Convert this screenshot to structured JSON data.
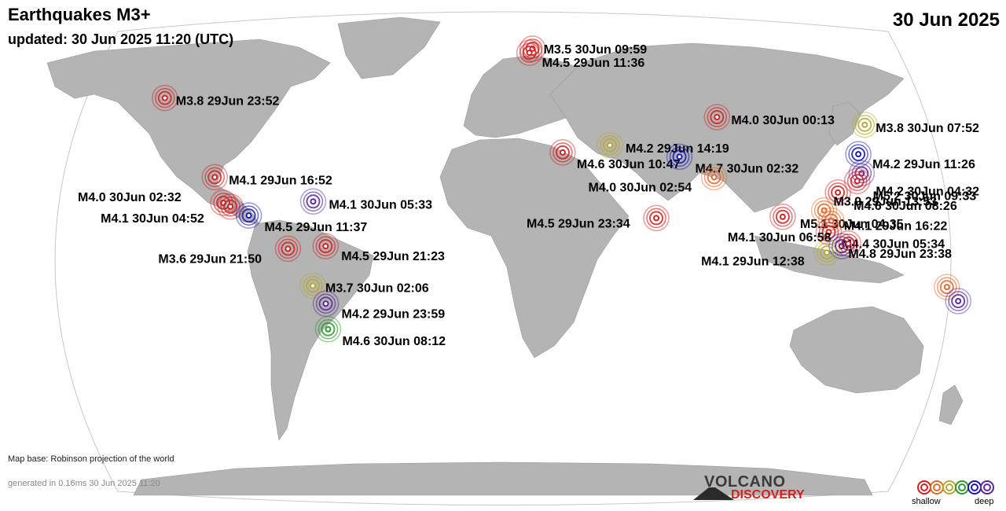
{
  "header": {
    "title": "Earthquakes M3+",
    "updated": "updated: 30 Jun 2025 11:20 (UTC)",
    "date": "30 Jun 2025"
  },
  "footer": {
    "map_base": "Map base: Robinson projection of the world",
    "generated": "generated in 0.16ms 30 Jun 2025 11:20"
  },
  "logo": {
    "line1": "VOLCANO",
    "line2": "DISCOVERY"
  },
  "legend": {
    "shallow": "shallow",
    "deep": "deep",
    "depth_colors": [
      "#d42020",
      "#e06a2a",
      "#b8a830",
      "#2a9a2a",
      "#1a1ab0",
      "#5a2a9a"
    ]
  },
  "colors": {
    "ocean": "#ffffff",
    "land": "#b4b4b4",
    "outline": "#c8c8c8",
    "deep_red": "#d42020",
    "orange": "#e06a2a",
    "olive": "#b8a830",
    "green": "#2a9a2a",
    "blue": "#1a1ab0",
    "purple": "#5a2a9a"
  },
  "quakes": [
    {
      "label": "M3.5 30Jun 09:59",
      "lon": 15.3,
      "lat": 78.8,
      "depth": "red"
    },
    {
      "label": "M4.5 29Jun 11:36",
      "lon": 13.5,
      "lat": 77.2,
      "depth": "red"
    },
    {
      "label": "M3.8 29Jun 23:52",
      "lon": -152.0,
      "lat": 59.5,
      "depth": "red"
    },
    {
      "label": "M3.8 30Jun 07:52",
      "lon": 153.0,
      "lat": 49.0,
      "depth": "olive"
    },
    {
      "label": "M4.0 30Jun 00:13",
      "lon": 92.0,
      "lat": 52.0,
      "depth": "red"
    },
    {
      "label": "M4.2 29Jun 14:19",
      "lon": 43.5,
      "lat": 41.0,
      "depth": "olive"
    },
    {
      "label": "M4.6 30Jun 10:47",
      "lon": 24.0,
      "lat": 38.2,
      "depth": "red"
    },
    {
      "label": "M4.2 29Jun 11:26",
      "lon": 142.5,
      "lat": 37.5,
      "depth": "blue"
    },
    {
      "label": "M4.7 30Jun 02:32",
      "lon": 70.5,
      "lat": 36.5,
      "depth": "blue"
    },
    {
      "label": "M4.2 30Jun 04:32",
      "lon": 140.0,
      "lat": 30.0,
      "depth": "purple"
    },
    {
      "label": "M4.0 30Jun 02:54",
      "lon": 82.0,
      "lat": 28.5,
      "depth": "orange"
    },
    {
      "label": "M5.2 30Jun 09:33",
      "lon": 137.0,
      "lat": 27.0,
      "depth": "red"
    },
    {
      "label": "M4.1 29Jun 16:52",
      "lon": -112.0,
      "lat": 28.5,
      "depth": "red"
    },
    {
      "label": "M4.6 30Jun 08:26",
      "lon": 128.0,
      "lat": 22.5,
      "depth": "red"
    },
    {
      "label": "M4.0 30Jun 02:32",
      "lon": -106.0,
      "lat": 18.5,
      "depth": "red"
    },
    {
      "label": "M4.1 30Jun 04:52",
      "lon": -103.0,
      "lat": 17.0,
      "depth": "red"
    },
    {
      "label": "M4.1 30Jun 05:33",
      "lon": -72.0,
      "lat": 19.0,
      "depth": "purple"
    },
    {
      "label": "M4.5 29Jun 11:37",
      "lon": -95.5,
      "lat": 13.5,
      "depth": "blue"
    },
    {
      "label": "M3.9 29Jun 13:53",
      "lon": 121.0,
      "lat": 15.5,
      "depth": "orange"
    },
    {
      "label": "M4.5 29Jun 23:34",
      "lon": 57.5,
      "lat": 12.5,
      "depth": "red"
    },
    {
      "label": "M5.1 30Jun 04:35",
      "lon": 105.0,
      "lat": 13.0,
      "depth": "red"
    },
    {
      "label": "M4.1 29Jun 16:22",
      "lon": 123.0,
      "lat": 11.5,
      "depth": "orange"
    },
    {
      "label": "M4.4 30Jun 05:34",
      "lon": 121.5,
      "lat": 7.0,
      "depth": "red"
    },
    {
      "label": "M3.6 29Jun 21:50",
      "lon": -80.0,
      "lat": 0.5,
      "depth": "red"
    },
    {
      "label": "M4.5 29Jun 21:23",
      "lon": -66.0,
      "lat": 1.5,
      "depth": "red"
    },
    {
      "label": "M4.1 30Jun 06:58",
      "lon": 126.0,
      "lat": 1.5,
      "depth": "blue"
    },
    {
      "label": "M4.8 29Jun 23:38",
      "lon": 128.5,
      "lat": 2.5,
      "depth": "red"
    },
    {
      "label": "M4.1 29Jun 12:38",
      "lon": 120.5,
      "lat": -1.0,
      "depth": "olive"
    },
    {
      "label": "M3.7 30Jun 02:06",
      "lon": -71.5,
      "lat": -14.0,
      "depth": "olive"
    },
    {
      "label": "M4.2 29Jun 23:59",
      "lon": -67.5,
      "lat": -21.0,
      "depth": "purple"
    },
    {
      "label": "M4.6 30Jun 08:12",
      "lon": -68.5,
      "lat": -31.0,
      "depth": "green"
    },
    {
      "label": "",
      "lon": 167.0,
      "lat": -14.5,
      "depth": "orange"
    },
    {
      "label": "",
      "lon": 173.0,
      "lat": -20.0,
      "depth": "purple"
    }
  ]
}
